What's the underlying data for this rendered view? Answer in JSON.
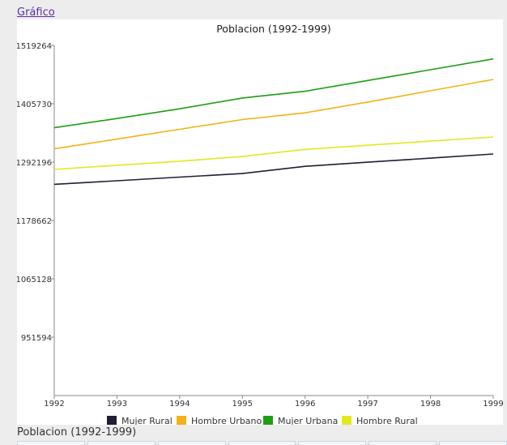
{
  "page": {
    "link_text": "Gráfico",
    "caption": "Poblacion (1992-1999)"
  },
  "chart_data": {
    "type": "line",
    "title": "Poblacion (1992-1999)",
    "xlabel": "",
    "ylabel": "",
    "x": [
      "1992",
      "1993",
      "1994",
      "1995",
      "1996",
      "1997",
      "1998",
      "1999"
    ],
    "y_ticks": [
      951594,
      1065128,
      1178662,
      1292196,
      1405730,
      1519264
    ],
    "ylim": [
      838060,
      1519264
    ],
    "grid": false,
    "legend_position": "bottom",
    "series": [
      {
        "name": "Mujer Rural",
        "color": "#231d33",
        "values": [
          1249000,
          1256000,
          1263000,
          1270000,
          1284000,
          1292000,
          1300000,
          1308000
        ]
      },
      {
        "name": "Hombre Urbano",
        "color": "#f5b115",
        "values": [
          1318000,
          1337000,
          1356000,
          1375000,
          1388000,
          1409000,
          1431000,
          1453000
        ]
      },
      {
        "name": "Mujer Urbana",
        "color": "#1e9e13",
        "values": [
          1359000,
          1377000,
          1396000,
          1417000,
          1430000,
          1451000,
          1472000,
          1493000
        ]
      },
      {
        "name": "Hombre Rural",
        "color": "#e3e81e",
        "values": [
          1278000,
          1286000,
          1294000,
          1303000,
          1317000,
          1325000,
          1333000,
          1341000
        ]
      }
    ]
  }
}
